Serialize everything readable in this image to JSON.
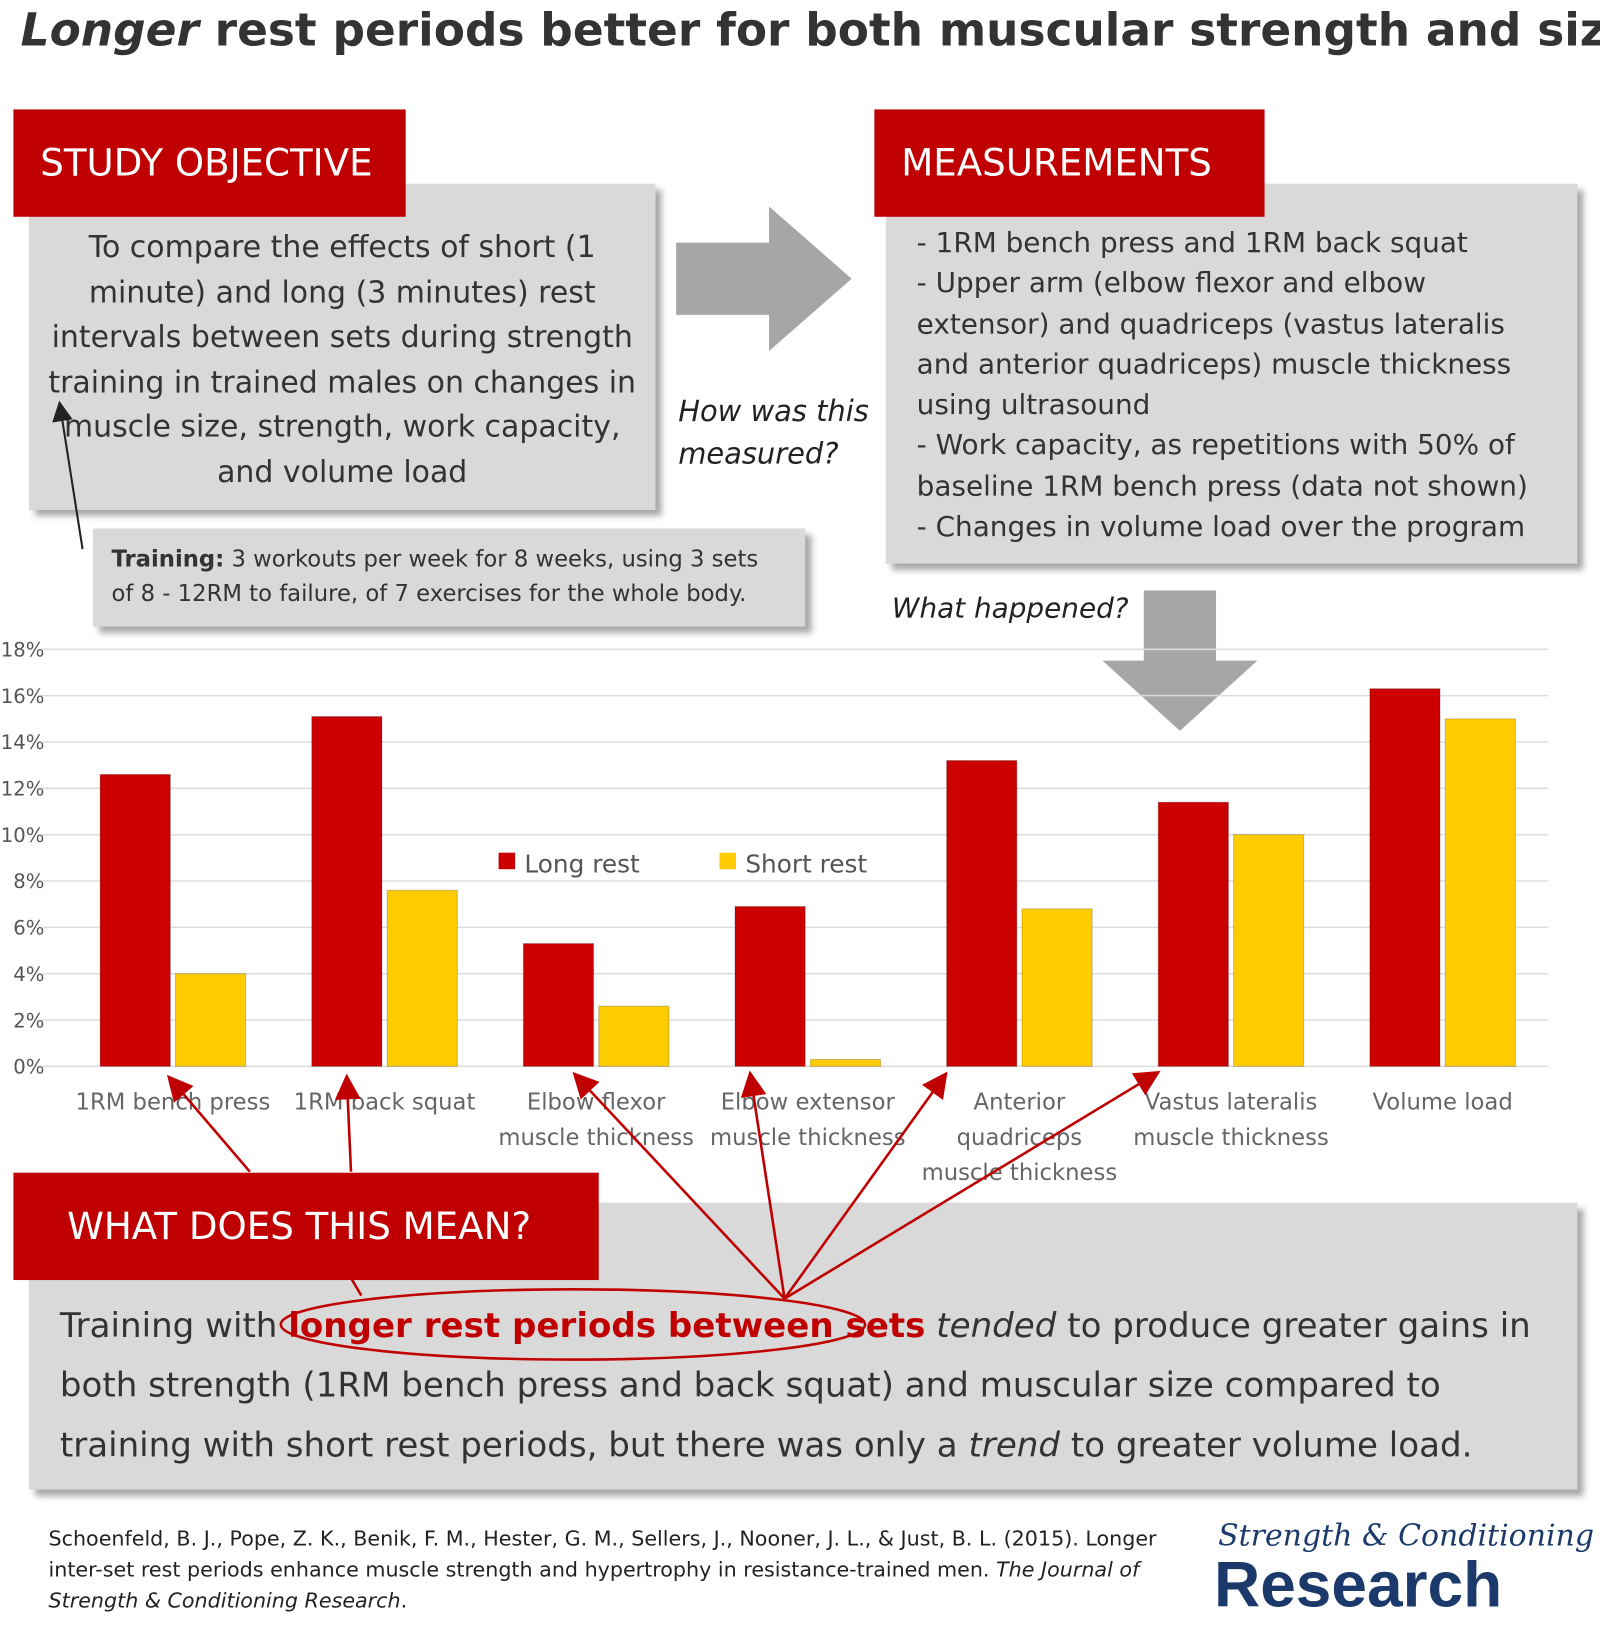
{
  "title": {
    "emphasis": "Longer",
    "rest": "rest periods better for both muscular strength and size?"
  },
  "objective": {
    "header": "STUDY OBJECTIVE",
    "text": "To compare the effects of short (1 minute) and long (3 minutes) rest intervals between sets during strength training in trained males on changes in muscle size, strength, work capacity, and volume load"
  },
  "question1": "How was this measured?",
  "measurements": {
    "header": "MEASUREMENTS",
    "items": [
      "- 1RM bench press and 1RM back squat",
      "- Upper arm (elbow flexor and elbow extensor) and quadriceps (vastus lateralis and anterior quadriceps) muscle thickness using ultrasound",
      "- Work capacity, as repetitions with 50% of baseline 1RM bench press (data not shown)",
      "- Changes in volume load over the program"
    ]
  },
  "training": {
    "label": "Training:",
    "text": "3 workouts per week for 8 weeks, using 3 sets of 8 - 12RM to failure, of 7 exercises for the whole body."
  },
  "question2": "What happened?",
  "chart_data": {
    "type": "bar",
    "categories": [
      "1RM bench press",
      "1RM back squat",
      "Elbow flexor muscle thickness",
      "Elbow extensor muscle thickness",
      "Anterior quadriceps muscle thickness",
      "Vastus lateralis muscle thickness",
      "Volume load"
    ],
    "series": [
      {
        "name": "Long rest",
        "color": "#cc0000",
        "values": [
          12.6,
          15.1,
          5.3,
          6.9,
          13.2,
          11.4,
          16.3
        ]
      },
      {
        "name": "Short rest",
        "color": "#ffcc00",
        "values": [
          4.0,
          7.6,
          2.6,
          0.3,
          6.8,
          10.0,
          15.0
        ]
      }
    ],
    "ylim": [
      0,
      18
    ],
    "yticks": [
      {
        "value": 0,
        "label": "0%"
      },
      {
        "value": 2,
        "label": "2%"
      },
      {
        "value": 4,
        "label": "4%"
      },
      {
        "value": 6,
        "label": "6%"
      },
      {
        "value": 8,
        "label": "8%"
      },
      {
        "value": 10,
        "label": "10%"
      },
      {
        "value": 12,
        "label": "12%"
      },
      {
        "value": 14,
        "label": "14%"
      },
      {
        "value": 16,
        "label": "16%"
      },
      {
        "value": 18,
        "label": "18%"
      }
    ],
    "grid": true
  },
  "conclusion": {
    "header": "WHAT DOES THIS MEAN?",
    "parts": [
      "Training with ",
      "longer rest periods between sets",
      " ",
      "tended",
      " to produce greater gains in both strength (1RM bench press and back squat) and muscular size compared to training with short rest periods, but there was only a ",
      "trend",
      " to greater volume load."
    ]
  },
  "citation": {
    "authors": "Schoenfeld, B. J., Pope, Z. K., Benik, F. M., Hester, G. M., Sellers, J., Nooner, J. L., & Just, B. L. (2015). Longer inter-set rest periods enhance muscle strength and hypertrophy in resistance-trained men.",
    "journal": "The Journal of Strength & Conditioning Research",
    "end": "."
  },
  "logo": {
    "top": "Strength & Conditioning",
    "bottom": "Research"
  }
}
